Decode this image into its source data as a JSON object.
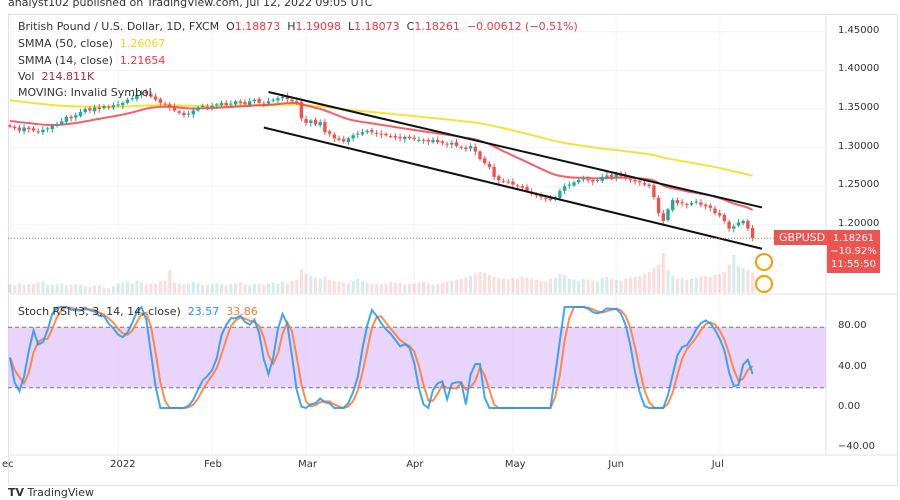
{
  "header": "analyst102 published on TradingView.com, Jul 12, 2022 09:05 UTC",
  "legend": {
    "symbol": "British Pound / U.S. Dollar, 1D, FXCM",
    "o_label": "O",
    "o": "1.18873",
    "h_label": "H",
    "h": "1.19098",
    "l_label": "L",
    "l": "1.18073",
    "c_label": "C",
    "c": "1.18261",
    "change": "−0.00612 (−0.51%)",
    "smma50_label": "SMMA (50, close)",
    "smma50": "1.26067",
    "smma14_label": "SMMA (14, close)",
    "smma14": "1.21654",
    "vol_label": "Vol",
    "vol": "214.811K",
    "moving": "MOVING: Invalid Symbol",
    "stoch_label": "Stoch RSI (3, 3, 14, 14, close)",
    "k": "23.57",
    "d": "33.86"
  },
  "price_tag": {
    "symbol": "GBPUSD",
    "price": "1.18261",
    "change_pct": "−10.92%",
    "countdown": "11:55:50"
  },
  "footer": "TradingView",
  "colors": {
    "up": "#26a69a",
    "down": "#ef5350",
    "smma50": "#f5d90a",
    "smma14": "#f23645",
    "k": "#2196f3",
    "d": "#ff7a29",
    "band": "#e1c6fb"
  },
  "chart_data": [
    {
      "type": "candlestick",
      "closes": [
        1.327,
        1.325,
        1.322,
        1.326,
        1.324,
        1.322,
        1.32,
        1.323,
        1.325,
        1.328,
        1.33,
        1.334,
        1.34,
        1.338,
        1.342,
        1.346,
        1.35,
        1.348,
        1.352,
        1.35,
        1.354,
        1.352,
        1.355,
        1.356,
        1.358,
        1.362,
        1.364,
        1.368,
        1.372,
        1.37,
        1.366,
        1.362,
        1.358,
        1.356,
        1.352,
        1.348,
        1.345,
        1.342,
        1.344,
        1.348,
        1.352,
        1.354,
        1.352,
        1.354,
        1.356,
        1.358,
        1.355,
        1.357,
        1.36,
        1.358,
        1.356,
        1.36,
        1.362,
        1.358,
        1.357,
        1.36,
        1.362,
        1.364,
        1.366,
        1.363,
        1.36,
        1.358,
        1.338,
        1.332,
        1.335,
        1.33,
        1.333,
        1.32,
        1.318,
        1.312,
        1.31,
        1.308,
        1.312,
        1.316,
        1.318,
        1.32,
        1.322,
        1.32,
        1.318,
        1.317,
        1.316,
        1.315,
        1.313,
        1.312,
        1.314,
        1.312,
        1.311,
        1.31,
        1.309,
        1.308,
        1.31,
        1.307,
        1.306,
        1.304,
        1.306,
        1.302,
        1.3,
        1.298,
        1.302,
        1.295,
        1.285,
        1.28,
        1.275,
        1.262,
        1.258,
        1.256,
        1.255,
        1.252,
        1.25,
        1.248,
        1.244,
        1.24,
        1.238,
        1.236,
        1.234,
        1.232,
        1.236,
        1.244,
        1.25,
        1.252,
        1.255,
        1.258,
        1.26,
        1.258,
        1.256,
        1.258,
        1.262,
        1.264,
        1.262,
        1.266,
        1.263,
        1.26,
        1.258,
        1.256,
        1.255,
        1.252,
        1.25,
        1.236,
        1.215,
        1.205,
        1.22,
        1.232,
        1.228,
        1.228,
        1.226,
        1.228,
        1.23,
        1.226,
        1.224,
        1.222,
        1.215,
        1.212,
        1.205,
        1.195,
        1.198,
        1.203,
        1.205,
        1.195,
        1.1826
      ],
      "volume_k": [
        90,
        80,
        100,
        85,
        95,
        90,
        110,
        120,
        85,
        90,
        95,
        100,
        80,
        90,
        95,
        85,
        70,
        60,
        75,
        80,
        60,
        50,
        70,
        100,
        110,
        120,
        100,
        130,
        110,
        90,
        95,
        100,
        120,
        130,
        240,
        110,
        100,
        90,
        95,
        120,
        100,
        85,
        90,
        95,
        100,
        90,
        80,
        95,
        100,
        110,
        90,
        85,
        100,
        95,
        90,
        100,
        110,
        95,
        120,
        100,
        130,
        140,
        250,
        200,
        180,
        160,
        150,
        170,
        140,
        130,
        120,
        110,
        100,
        130,
        150,
        120,
        110,
        100,
        95,
        90,
        100,
        120,
        110,
        100,
        90,
        95,
        100,
        110,
        120,
        100,
        90,
        95,
        110,
        120,
        130,
        140,
        150,
        160,
        180,
        200,
        220,
        210,
        190,
        170,
        160,
        150,
        140,
        160,
        150,
        170,
        160,
        150,
        140,
        130,
        120,
        150,
        160,
        200,
        190,
        150,
        140,
        130,
        150,
        140,
        130,
        120,
        160,
        170,
        150,
        140,
        130,
        150,
        160,
        170,
        180,
        200,
        220,
        260,
        300,
        420,
        240,
        180,
        150,
        160,
        140,
        150,
        160,
        170,
        180,
        170,
        190,
        200,
        220,
        300,
        400,
        280,
        260,
        240,
        214.811
      ],
      "price_axis": [
        "1.45000",
        "1.40000",
        "1.35000",
        "1.30000",
        "1.25000",
        "1.20000"
      ],
      "ylim": [
        1.15,
        1.47
      ],
      "time_ticks": [
        {
          "label": "ec",
          "i": 0
        },
        {
          "label": "2022",
          "i": 23
        },
        {
          "label": "Feb",
          "i": 43
        },
        {
          "label": "Mar",
          "i": 63
        },
        {
          "label": "Apr",
          "i": 86
        },
        {
          "label": "May",
          "i": 107
        },
        {
          "label": "Jun",
          "i": 129
        },
        {
          "label": "Jul",
          "i": 151
        }
      ],
      "trendlines": [
        {
          "from": [
            55,
            1.372
          ],
          "to": [
            160,
            1.2225
          ]
        },
        {
          "from": [
            54,
            1.326
          ],
          "to": [
            160,
            1.169
          ]
        }
      ]
    },
    {
      "type": "line",
      "title": "Stoch RSI (3, 3, 14, 14, close)",
      "axis": [
        "80.00",
        "40.00",
        "0.00",
        "−40.00"
      ],
      "ylim": [
        -45,
        115
      ],
      "band": [
        20,
        80
      ]
    }
  ]
}
